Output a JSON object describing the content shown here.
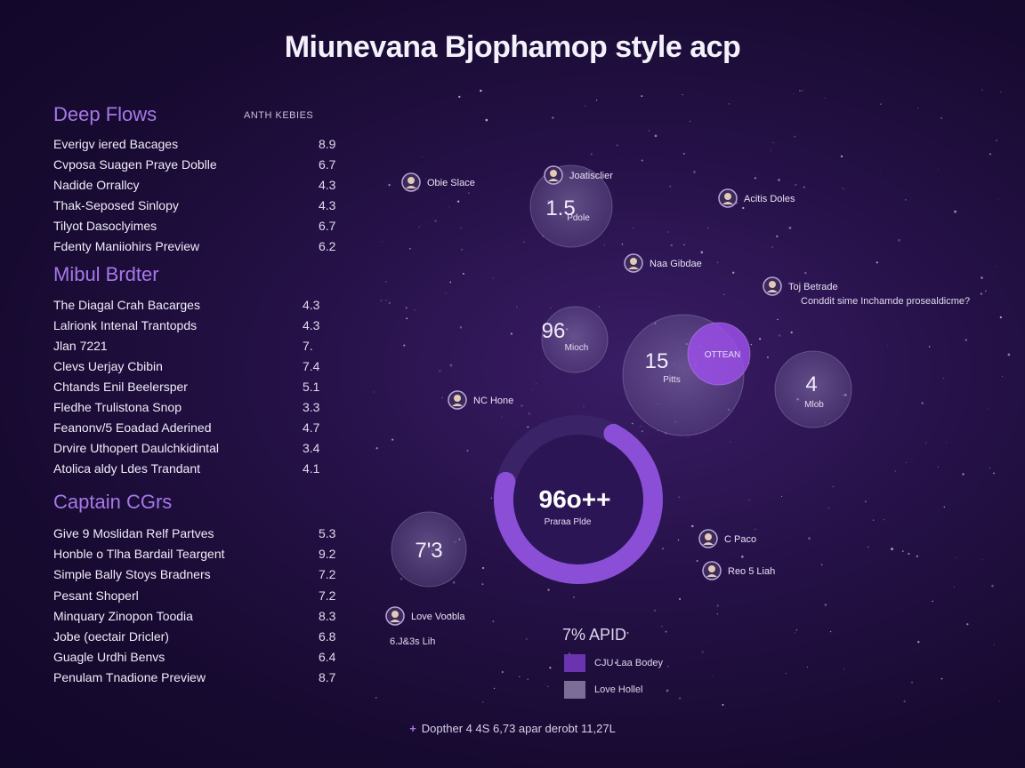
{
  "title": "Miunevana Bjophamop style acp",
  "column_header": "ANTH KEBIES",
  "footer": {
    "icon": "plus-icon",
    "text": "Dopther 4 4S 6,73 apar derobt 11,27L"
  },
  "colors": {
    "accent": "#a678e8",
    "ring": "#8a4fd6",
    "bubble": "#7d6aa0"
  },
  "chart_data": [
    {
      "type": "table",
      "sections": [
        {
          "title": "Deep Flows",
          "rows": [
            {
              "name": "Everigv iered Bacages",
              "value": "8.9"
            },
            {
              "name": "Cvposa Suagen Praye Doblle",
              "value": "6.7"
            },
            {
              "name": "Nadide Orrallcy",
              "value": "4.3"
            },
            {
              "name": "Thak-Seposed Sinlopy",
              "value": "4.3"
            },
            {
              "name": "Tilyot Dasoclyimes",
              "value": "6.7"
            },
            {
              "name": "Fdenty Maniiohirs Preview",
              "value": "6.2"
            }
          ]
        },
        {
          "title": "Mibul Brdter",
          "rows": [
            {
              "name": "The Diagal Crah Bacarges",
              "value": "4.3"
            },
            {
              "name": "Lalrionk Intenal Trantopds",
              "value": "4.3"
            },
            {
              "name": "Jlan 7221",
              "value": "7."
            },
            {
              "name": "Clevs Uerjay Cbibin",
              "value": "7.4"
            },
            {
              "name": "Chtands Enil Beelersper",
              "value": "5.1"
            },
            {
              "name": "Fledhe Trulistona Snop",
              "value": "3.3"
            },
            {
              "name": "Feanonv/5 Eoadad Aderined",
              "value": "4.7"
            },
            {
              "name": "Drvire Uthopert Daulchkidintal",
              "value": "3.4"
            },
            {
              "name": "Atolica aldy Ldes Trandant",
              "value": "4.1"
            }
          ]
        },
        {
          "title": "Captain CGrs",
          "rows": [
            {
              "name": "Give 9 Moslidan Relf Partves",
              "value": "5.3"
            },
            {
              "name": "Honble o Tlha Bardail Teargent",
              "value": "9.2"
            },
            {
              "name": "Simple Bally Stoys Bradners",
              "value": "7.2"
            },
            {
              "name": "Pesant Shoperl",
              "value": "7.2"
            },
            {
              "name": "Minquary Zinopon Toodia",
              "value": "8.3"
            },
            {
              "name": "Jobe (oectair Dricler)",
              "value": "6.8"
            },
            {
              "name": "Guagle Urdhi Benvs",
              "value": "6.4"
            },
            {
              "name": "Penulam Tnadione Preview",
              "value": "8.7"
            }
          ]
        }
      ]
    },
    {
      "type": "scatter",
      "bubbles": [
        {
          "label": "1.5",
          "sublabel": "Pdole",
          "size": 1.5
        },
        {
          "label": "96",
          "sublabel": "Mioch",
          "size": 1.3
        },
        {
          "label": "15",
          "sublabel": "Pitts",
          "size": 2.2
        },
        {
          "label": "",
          "sublabel": "OTTEAN",
          "size": 1.2,
          "highlight": true
        },
        {
          "label": "4",
          "sublabel": "Mlob",
          "size": 1.5
        },
        {
          "label": "7'3",
          "sublabel": "",
          "size": 1.5
        }
      ],
      "ring": {
        "label": "96o++",
        "sublabel": "Praraa Plde",
        "value": 96
      },
      "markers": [
        {
          "label": "Obie Slace",
          "icon": "avatar-icon"
        },
        {
          "label": "Joatisclier",
          "icon": "avatar-icon"
        },
        {
          "label": "Acitis Doles",
          "icon": "avatar-icon"
        },
        {
          "label": "Naa Gibdae",
          "icon": "avatar-icon"
        },
        {
          "label": "Toj Betrade",
          "icon": "avatar-icon",
          "detail": "Conddit sime Inchamde prosealdicme?"
        },
        {
          "label": "NC Hone",
          "icon": "avatar-icon"
        },
        {
          "label": "C Paco",
          "icon": "avatar-icon"
        },
        {
          "label": "Reo 5 Liah",
          "icon": "avatar-icon"
        },
        {
          "label": "Love Voobla",
          "icon": "avatar-icon",
          "detail": "6.J&3s Lih"
        }
      ],
      "legend": {
        "title": "7% APID",
        "items": [
          {
            "label": "CJU Laa Bodey",
            "color": "#6a34b0"
          },
          {
            "label": "Love Hollel",
            "color": "#7a6e96"
          }
        ]
      }
    }
  ]
}
